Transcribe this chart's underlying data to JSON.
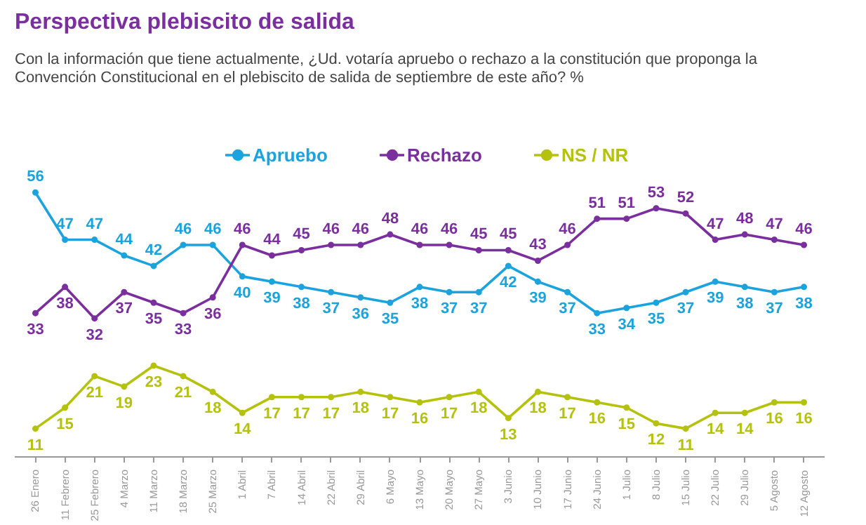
{
  "chart_data": {
    "type": "line",
    "title": "Perspectiva plebiscito de salida",
    "subtitle": "Con la información que tiene actualmente, ¿Ud. votaría apruebo o rechazo a la constitución que proponga la Convención Constitucional en el plebiscito de salida de septiembre de este año? %",
    "categories": [
      "26 Enero",
      "11 Febrero",
      "25 Febrero",
      "4 Marzo",
      "11 Marzo",
      "18 Marzo",
      "25 Marzo",
      "1 Abril",
      "7 Abril",
      "14 Abril",
      "22 Abril",
      "29 Abril",
      "6 Mayo",
      "13 Mayo",
      "20 Mayo",
      "27 Mayo",
      "3 Junio",
      "10 Junio",
      "17 Junio",
      "24 Junio",
      "1 Julio",
      "8 Julio",
      "15 Julio",
      "22 Julio",
      "29 Julio",
      "5 Agosto",
      "12 Agosto"
    ],
    "series": [
      {
        "name": "Apruebo",
        "color": "#1ca3de",
        "values": [
          56,
          47,
          47,
          44,
          42,
          46,
          46,
          40,
          39,
          38,
          37,
          36,
          35,
          38,
          37,
          37,
          42,
          39,
          37,
          33,
          34,
          35,
          37,
          39,
          38,
          37,
          38
        ]
      },
      {
        "name": "Rechazo",
        "color": "#7b2f9e",
        "values": [
          33,
          38,
          32,
          37,
          35,
          33,
          36,
          46,
          44,
          45,
          46,
          46,
          48,
          46,
          46,
          45,
          45,
          43,
          46,
          51,
          51,
          53,
          52,
          47,
          48,
          47,
          46
        ]
      },
      {
        "name": "NS / NR",
        "color": "#b4c20e",
        "values": [
          11,
          15,
          21,
          19,
          23,
          21,
          18,
          14,
          17,
          17,
          17,
          18,
          17,
          16,
          17,
          18,
          13,
          18,
          17,
          16,
          15,
          12,
          11,
          14,
          14,
          16,
          16
        ]
      }
    ],
    "data_labels": true,
    "legend": "top",
    "marker": "circle",
    "line_style": "solid",
    "grid": false
  }
}
